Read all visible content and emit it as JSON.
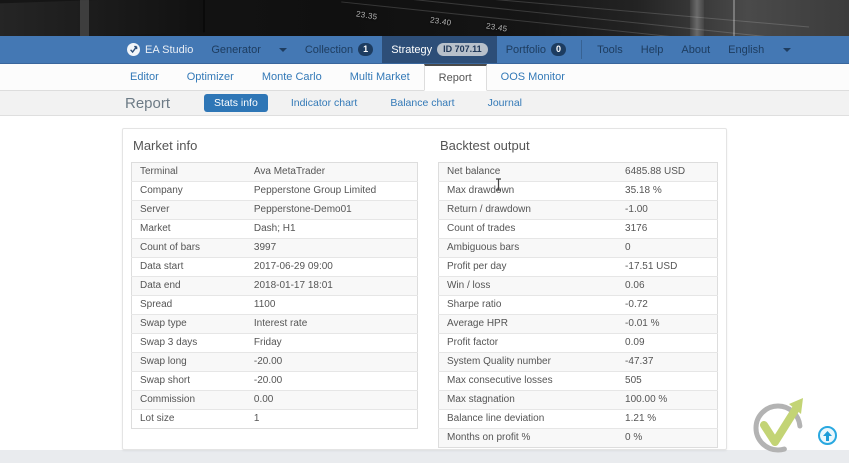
{
  "background": {
    "time_labels": [
      "23.35",
      "23.40",
      "23.45"
    ]
  },
  "navbar": {
    "brand": "EA Studio",
    "generator": {
      "label": "Generator"
    },
    "collection": {
      "label": "Collection",
      "badge": "1"
    },
    "strategy": {
      "label": "Strategy",
      "badge": "ID 707.11"
    },
    "portfolio": {
      "label": "Portfolio",
      "badge": "0"
    },
    "tools": "Tools",
    "help": "Help",
    "about": "About",
    "language": "English"
  },
  "tabs": [
    "Editor",
    "Optimizer",
    "Monte Carlo",
    "Multi Market",
    "Report",
    "OOS Monitor"
  ],
  "report": {
    "title": "Report",
    "pills": [
      "Stats info",
      "Indicator chart",
      "Balance chart",
      "Journal"
    ]
  },
  "market_info": {
    "title": "Market info",
    "rows": [
      {
        "label": "Terminal",
        "value": "Ava MetaTrader"
      },
      {
        "label": "Company",
        "value": "Pepperstone Group Limited"
      },
      {
        "label": "Server",
        "value": "Pepperstone-Demo01"
      },
      {
        "label": "Market",
        "value": "Dash; H1"
      },
      {
        "label": "Count of bars",
        "value": "3997"
      },
      {
        "label": "Data start",
        "value": "2017-06-29 09:00"
      },
      {
        "label": "Data end",
        "value": "2018-01-17 18:01"
      },
      {
        "label": "Spread",
        "value": "1100"
      },
      {
        "label": "Swap type",
        "value": "Interest rate"
      },
      {
        "label": "Swap 3 days",
        "value": "Friday"
      },
      {
        "label": "Swap long",
        "value": "-20.00"
      },
      {
        "label": "Swap short",
        "value": "-20.00"
      },
      {
        "label": "Commission",
        "value": "0.00"
      },
      {
        "label": "Lot size",
        "value": "1"
      }
    ]
  },
  "backtest_output": {
    "title": "Backtest output",
    "rows": [
      {
        "label": "Net balance",
        "value": "6485.88 USD"
      },
      {
        "label": "Max drawdown",
        "value": "35.18 %"
      },
      {
        "label": "Return / drawdown",
        "value": "-1.00"
      },
      {
        "label": "Count of trades",
        "value": "3176"
      },
      {
        "label": "Ambiguous bars",
        "value": "0"
      },
      {
        "label": "Profit per day",
        "value": "-17.51 USD"
      },
      {
        "label": "Win / loss",
        "value": "0.06"
      },
      {
        "label": "Sharpe ratio",
        "value": "-0.72"
      },
      {
        "label": "Average HPR",
        "value": "-0.01 %"
      },
      {
        "label": "Profit factor",
        "value": "0.09"
      },
      {
        "label": "System Quality number",
        "value": "-47.37"
      },
      {
        "label": "Max consecutive losses",
        "value": "505"
      },
      {
        "label": "Max stagnation",
        "value": "100.00 %"
      },
      {
        "label": "Balance line deviation",
        "value": "1.21 %"
      },
      {
        "label": "Months on profit %",
        "value": "0 %"
      }
    ]
  },
  "colors": {
    "navbar_bg": "#4478b4",
    "navbar_active_bg": "#2d4e78",
    "link_blue": "#3379b7",
    "pill_active_bg": "#2e76b6",
    "logo_green": "#c3d475",
    "scroll_top_blue": "#29a8e0"
  }
}
